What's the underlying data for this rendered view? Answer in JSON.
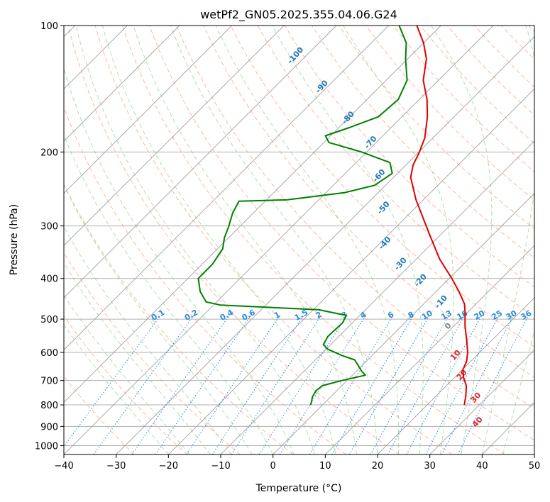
{
  "chart_data": {
    "type": "skew-t",
    "title": "wetPf2_GN05.2025.355.04.06.G24",
    "xlabel": "Temperature (°C)",
    "ylabel": "Pressure (hPa)",
    "xlim": [
      -40,
      50
    ],
    "ylim_hpa": [
      1050,
      100
    ],
    "x_ticks": [
      -40,
      -30,
      -20,
      -10,
      0,
      10,
      20,
      30,
      40,
      50
    ],
    "x_tick_labels": [
      "−40",
      "−30",
      "−20",
      "−10",
      "0",
      "10",
      "20",
      "30",
      "40",
      "50"
    ],
    "y_ticks": [
      100,
      200,
      300,
      400,
      500,
      600,
      700,
      800,
      900,
      1000
    ],
    "y_tick_labels": [
      "100",
      "200",
      "300",
      "400",
      "500",
      "600",
      "700",
      "800",
      "900",
      "1000"
    ],
    "grid": true,
    "temperature_profile": {
      "name": "Temperature",
      "color": "#e00000",
      "points": [
        {
          "p": 800,
          "t": 27.1
        },
        {
          "p": 760,
          "t": 25.6
        },
        {
          "p": 720,
          "t": 23.8
        },
        {
          "p": 690,
          "t": 21.8
        },
        {
          "p": 660,
          "t": 20.1
        },
        {
          "p": 630,
          "t": 19.2
        },
        {
          "p": 600,
          "t": 17.7
        },
        {
          "p": 560,
          "t": 15.1
        },
        {
          "p": 520,
          "t": 12.2
        },
        {
          "p": 480,
          "t": 9.4
        },
        {
          "p": 460,
          "t": 7.8
        },
        {
          "p": 430,
          "t": 4.4
        },
        {
          "p": 400,
          "t": 0.5
        },
        {
          "p": 360,
          "t": -5.5
        },
        {
          "p": 320,
          "t": -11.3
        },
        {
          "p": 290,
          "t": -16.1
        },
        {
          "p": 260,
          "t": -21.4
        },
        {
          "p": 230,
          "t": -26.7
        },
        {
          "p": 215,
          "t": -28.6
        },
        {
          "p": 200,
          "t": -29.9
        },
        {
          "p": 185,
          "t": -31.6
        },
        {
          "p": 165,
          "t": -35.1
        },
        {
          "p": 150,
          "t": -38.5
        },
        {
          "p": 135,
          "t": -42.9
        },
        {
          "p": 120,
          "t": -46.4
        },
        {
          "p": 110,
          "t": -50.0
        },
        {
          "p": 100,
          "t": -54.6
        }
      ]
    },
    "dewpoint_profile": {
      "name": "Dewpoint",
      "color": "#008000",
      "points": [
        {
          "p": 800,
          "t": -2.3
        },
        {
          "p": 785,
          "t": -2.8
        },
        {
          "p": 765,
          "t": -3.5
        },
        {
          "p": 740,
          "t": -4.0
        },
        {
          "p": 720,
          "t": -3.7
        },
        {
          "p": 700,
          "t": -1.0
        },
        {
          "p": 680,
          "t": 2.5
        },
        {
          "p": 665,
          "t": 1.0
        },
        {
          "p": 645,
          "t": -0.7
        },
        {
          "p": 625,
          "t": -2.5
        },
        {
          "p": 610,
          "t": -5.8
        },
        {
          "p": 590,
          "t": -9.6
        },
        {
          "p": 575,
          "t": -11.4
        },
        {
          "p": 550,
          "t": -12.1
        },
        {
          "p": 510,
          "t": -11.9
        },
        {
          "p": 490,
          "t": -12.6
        },
        {
          "p": 475,
          "t": -18.9
        },
        {
          "p": 463,
          "t": -38.6
        },
        {
          "p": 455,
          "t": -42.0
        },
        {
          "p": 430,
          "t": -45.1
        },
        {
          "p": 400,
          "t": -48.0
        },
        {
          "p": 370,
          "t": -48.0
        },
        {
          "p": 340,
          "t": -49.0
        },
        {
          "p": 320,
          "t": -50.8
        },
        {
          "p": 300,
          "t": -52.2
        },
        {
          "p": 280,
          "t": -53.9
        },
        {
          "p": 262,
          "t": -55.0
        },
        {
          "p": 260,
          "t": -46.0
        },
        {
          "p": 250,
          "t": -36.5
        },
        {
          "p": 240,
          "t": -32.1
        },
        {
          "p": 225,
          "t": -31.0
        },
        {
          "p": 212,
          "t": -33.5
        },
        {
          "p": 200,
          "t": -41.0
        },
        {
          "p": 190,
          "t": -49.0
        },
        {
          "p": 183,
          "t": -51.0
        },
        {
          "p": 175,
          "t": -48.0
        },
        {
          "p": 165,
          "t": -44.5
        },
        {
          "p": 150,
          "t": -44.0
        },
        {
          "p": 135,
          "t": -46.0
        },
        {
          "p": 120,
          "t": -50.4
        },
        {
          "p": 110,
          "t": -53.3
        },
        {
          "p": 100,
          "t": -58.0
        }
      ]
    },
    "mixing_ratio_labels": [
      "0.1",
      "0.2",
      "0.4",
      "0.6",
      "1",
      "1.5",
      "2",
      "3",
      "4",
      "6",
      "8",
      "10",
      "13",
      "16",
      "20",
      "25",
      "30",
      "36"
    ],
    "mixing_ratio_values": [
      0.1,
      0.2,
      0.4,
      0.6,
      1,
      1.5,
      2,
      3,
      4,
      6,
      8,
      10,
      13,
      16,
      20,
      25,
      30,
      36
    ],
    "moist_adiabat_labels": [
      {
        "text": "-100",
        "color": "#1f77b4"
      },
      {
        "text": "-90",
        "color": "#1f77b4"
      },
      {
        "text": "-80",
        "color": "#1f77b4"
      },
      {
        "text": "-70",
        "color": "#1f77b4"
      },
      {
        "text": "-60",
        "color": "#1f77b4"
      },
      {
        "text": "-50",
        "color": "#1f77b4"
      },
      {
        "text": "-40",
        "color": "#1f77b4"
      },
      {
        "text": "-30",
        "color": "#1f77b4"
      },
      {
        "text": "-20",
        "color": "#1f77b4"
      },
      {
        "text": "-10",
        "color": "#1f77b4"
      },
      {
        "text": "0",
        "color": "#808080"
      },
      {
        "text": "10",
        "color": "#d62728"
      },
      {
        "text": "20",
        "color": "#d62728"
      },
      {
        "text": "30",
        "color": "#d62728"
      },
      {
        "text": "40",
        "color": "#d62728"
      }
    ],
    "colors": {
      "isotherm": "#a0a0a0",
      "isobar": "#b0b0b0",
      "dry_adiabat": "#ff9f80",
      "moist_adiabat": "#8fd18f",
      "mixing_ratio": "#3a8fd9",
      "mixing_ratio_label": "#2a8ad8"
    }
  }
}
